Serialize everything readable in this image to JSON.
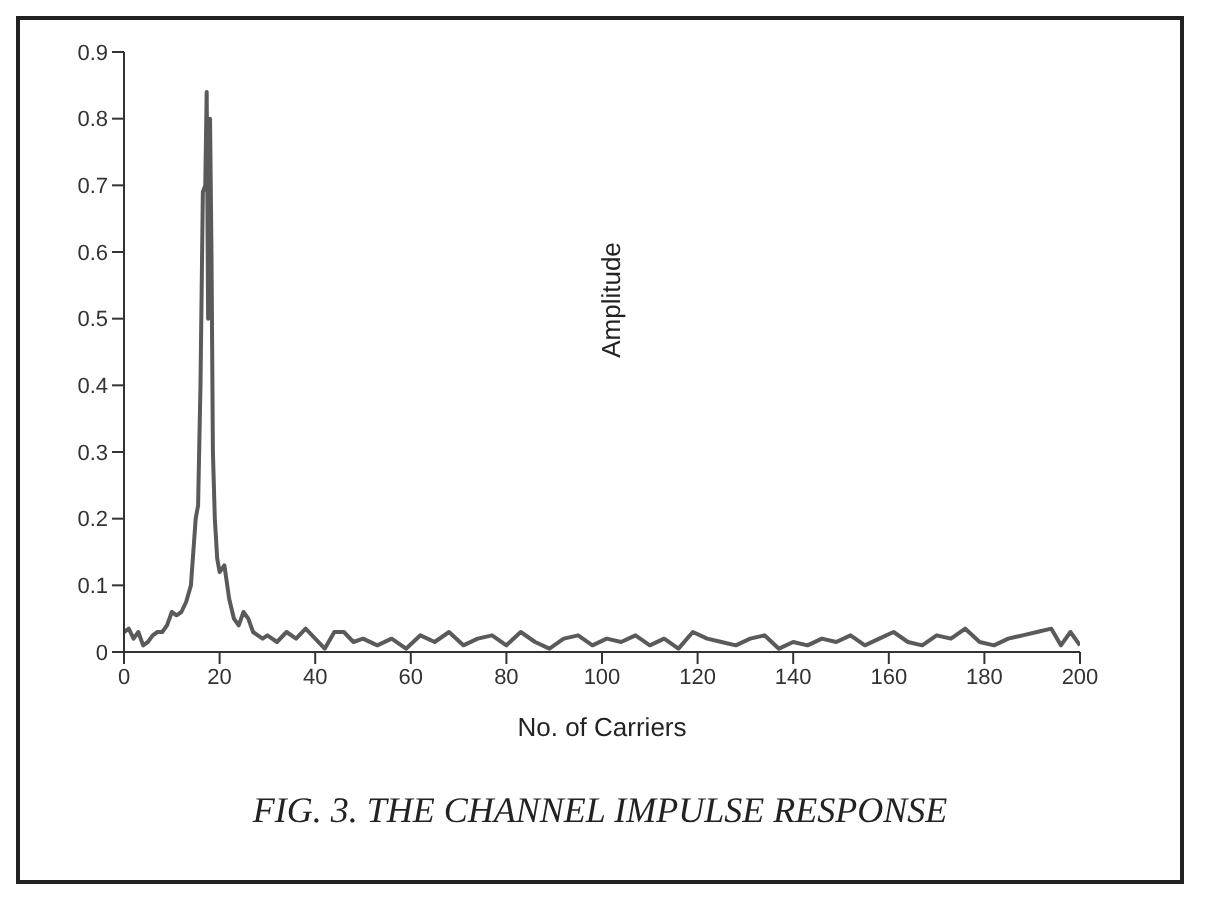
{
  "chart_data": {
    "type": "line",
    "xlabel": "No. of Carriers",
    "ylabel": "Amplitude",
    "annotations": [
      "FIG. 3. THE CHANNEL IMPULSE RESPONSE"
    ],
    "xlim": [
      0,
      200
    ],
    "xticks": [
      0,
      20,
      40,
      60,
      80,
      100,
      120,
      140,
      160,
      180,
      200
    ],
    "ylim": [
      0,
      0.9
    ],
    "yticks": [
      0,
      0.1,
      0.2,
      0.3,
      0.4,
      0.5,
      0.6,
      0.7,
      0.8,
      0.9
    ],
    "grid": false,
    "marker": "none",
    "line_style": "solid",
    "series": [
      {
        "color": "#5a5a5a",
        "x": [
          0,
          1,
          2,
          3,
          4,
          5,
          6,
          7,
          8,
          9,
          10,
          11,
          12,
          13,
          14,
          15,
          15.5,
          16,
          16.5,
          17,
          17.3,
          17.6,
          18,
          18.3,
          18.6,
          19,
          19.5,
          20,
          21,
          22,
          23,
          24,
          25,
          26,
          27,
          28,
          29,
          30,
          32,
          34,
          36,
          38,
          40,
          42,
          44,
          46,
          48,
          50,
          53,
          56,
          59,
          62,
          65,
          68,
          71,
          74,
          77,
          80,
          83,
          86,
          89,
          92,
          95,
          98,
          101,
          104,
          107,
          110,
          113,
          116,
          119,
          122,
          125,
          128,
          131,
          134,
          137,
          140,
          143,
          146,
          149,
          152,
          155,
          158,
          161,
          164,
          167,
          170,
          173,
          176,
          179,
          182,
          185,
          188,
          191,
          194,
          196,
          198,
          200
        ],
        "values": [
          0.03,
          0.035,
          0.02,
          0.03,
          0.01,
          0.015,
          0.025,
          0.03,
          0.03,
          0.04,
          0.06,
          0.055,
          0.06,
          0.075,
          0.1,
          0.2,
          0.22,
          0.4,
          0.69,
          0.7,
          0.84,
          0.5,
          0.8,
          0.6,
          0.3,
          0.2,
          0.14,
          0.12,
          0.13,
          0.08,
          0.05,
          0.04,
          0.06,
          0.05,
          0.03,
          0.025,
          0.02,
          0.025,
          0.015,
          0.03,
          0.02,
          0.035,
          0.02,
          0.005,
          0.03,
          0.03,
          0.015,
          0.02,
          0.01,
          0.02,
          0.005,
          0.025,
          0.015,
          0.03,
          0.01,
          0.02,
          0.025,
          0.01,
          0.03,
          0.015,
          0.005,
          0.02,
          0.025,
          0.01,
          0.02,
          0.015,
          0.025,
          0.01,
          0.02,
          0.005,
          0.03,
          0.02,
          0.015,
          0.01,
          0.02,
          0.025,
          0.005,
          0.015,
          0.01,
          0.02,
          0.015,
          0.025,
          0.01,
          0.02,
          0.03,
          0.015,
          0.01,
          0.025,
          0.02,
          0.035,
          0.015,
          0.01,
          0.02,
          0.025,
          0.03,
          0.035,
          0.01,
          0.03,
          0.01
        ]
      }
    ]
  }
}
